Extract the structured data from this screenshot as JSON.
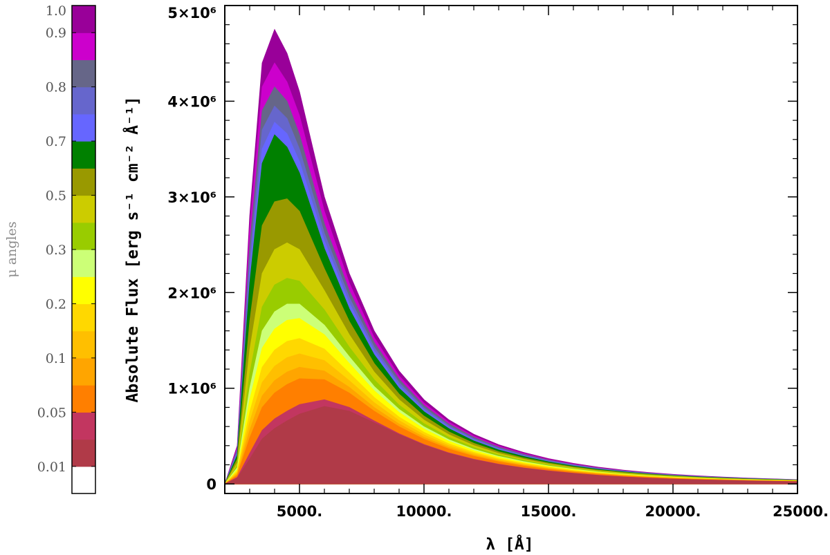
{
  "chart_data": {
    "type": "area",
    "xlabel": "λ [Å]",
    "ylabel": "Absolute Flux [erg s⁻¹ cm⁻² Å⁻¹]",
    "xlim": [
      2000,
      25000
    ],
    "ylim": [
      -100000,
      5000000
    ],
    "x_ticks": [
      {
        "value": 5000,
        "label": "5000."
      },
      {
        "value": 10000,
        "label": "10000."
      },
      {
        "value": 15000,
        "label": "15000."
      },
      {
        "value": 20000,
        "label": "20000."
      },
      {
        "value": 25000,
        "label": "25000."
      }
    ],
    "y_ticks": [
      {
        "value": 0,
        "label": "0"
      },
      {
        "value": 1000000,
        "label": "1×10⁶"
      },
      {
        "value": 2000000,
        "label": "2×10⁶"
      },
      {
        "value": 3000000,
        "label": "3×10⁶"
      },
      {
        "value": 4000000,
        "label": "4×10⁶"
      },
      {
        "value": 5000000,
        "label": "5×10⁶"
      }
    ],
    "x": [
      2000,
      2500,
      3000,
      3500,
      4000,
      4500,
      5000,
      6000,
      7000,
      8000,
      9000,
      10000,
      11000,
      12000,
      13000,
      14000,
      15000,
      16000,
      17000,
      18000,
      19000,
      20000,
      21000,
      22000,
      23000,
      24000,
      25000
    ],
    "colorbar": {
      "title": "μ angles",
      "tick_labels": [
        {
          "value": 0.01,
          "label": "0.01"
        },
        {
          "value": 0.05,
          "label": "0.05"
        },
        {
          "value": 0.1,
          "label": "0.1"
        },
        {
          "value": 0.2,
          "label": "0.2"
        },
        {
          "value": 0.3,
          "label": "0.3"
        },
        {
          "value": 0.5,
          "label": "0.5"
        },
        {
          "value": 0.7,
          "label": "0.7"
        },
        {
          "value": 0.8,
          "label": "0.8"
        },
        {
          "value": 0.9,
          "label": "0.9"
        },
        {
          "value": 1.0,
          "label": "1.0"
        }
      ],
      "colors": [
        "#ffffff",
        "#b03a48",
        "#c23660",
        "#ff7f00",
        "#ffa500",
        "#ffbf00",
        "#ffd800",
        "#ffff00",
        "#ccff77",
        "#99cc00",
        "#cccc00",
        "#999900",
        "#008000",
        "#6666ff",
        "#6666cc",
        "#666688",
        "#cc00cc",
        "#990099"
      ]
    },
    "series": [
      {
        "color": "#990099",
        "values": [
          0,
          400000,
          2800000,
          4400000,
          4750000,
          4500000,
          4100000,
          3000000,
          2200000,
          1600000,
          1180000,
          880000,
          670000,
          520000,
          410000,
          330000,
          265000,
          215000,
          175000,
          145000,
          120000,
          100000,
          85000,
          72000,
          62000,
          53000,
          45000
        ]
      },
      {
        "color": "#cc00cc",
        "values": [
          0,
          380000,
          2650000,
          4150000,
          4400000,
          4200000,
          3850000,
          2850000,
          2100000,
          1530000,
          1130000,
          845000,
          645000,
          500000,
          395000,
          318000,
          255000,
          208000,
          169000,
          140000,
          116000,
          97000,
          82000,
          70000,
          60000,
          51000,
          44000
        ]
      },
      {
        "color": "#666688",
        "values": [
          0,
          360000,
          2500000,
          3900000,
          4150000,
          4000000,
          3650000,
          2720000,
          2020000,
          1480000,
          1095000,
          820000,
          627000,
          487000,
          385000,
          310000,
          249000,
          203000,
          165000,
          137000,
          114000,
          95000,
          80000,
          68000,
          58000,
          50000,
          43000
        ]
      },
      {
        "color": "#6666cc",
        "values": [
          0,
          340000,
          2350000,
          3700000,
          3950000,
          3820000,
          3500000,
          2620000,
          1950000,
          1430000,
          1060000,
          795000,
          608000,
          473000,
          374000,
          302000,
          243000,
          198000,
          161000,
          133000,
          111000,
          93000,
          78000,
          66000,
          57000,
          49000,
          42000
        ]
      },
      {
        "color": "#6666ff",
        "values": [
          0,
          320000,
          2200000,
          3500000,
          3780000,
          3660000,
          3370000,
          2540000,
          1890000,
          1390000,
          1030000,
          775000,
          593000,
          462000,
          365000,
          295000,
          237000,
          193000,
          157000,
          130000,
          108000,
          91000,
          76000,
          65000,
          56000,
          48000,
          41000
        ]
      },
      {
        "color": "#008000",
        "values": [
          0,
          300000,
          2100000,
          3350000,
          3650000,
          3520000,
          3250000,
          2460000,
          1830000,
          1350000,
          1000000,
          755000,
          578000,
          450000,
          356000,
          288000,
          231000,
          188000,
          153000,
          127000,
          105000,
          88000,
          74000,
          63000,
          54000,
          47000,
          40000
        ]
      },
      {
        "color": "#999900",
        "values": [
          0,
          260000,
          1700000,
          2700000,
          2950000,
          2980000,
          2850000,
          2250000,
          1700000,
          1260000,
          940000,
          710000,
          545000,
          425000,
          337000,
          272000,
          219000,
          178000,
          145000,
          120000,
          100000,
          84000,
          70000,
          60000,
          51000,
          44000,
          38000
        ]
      },
      {
        "color": "#cccc00",
        "values": [
          0,
          220000,
          1400000,
          2200000,
          2450000,
          2520000,
          2450000,
          2020000,
          1560000,
          1170000,
          880000,
          668000,
          515000,
          402000,
          319000,
          258000,
          208000,
          169000,
          138000,
          114000,
          95000,
          80000,
          67000,
          57000,
          49000,
          42000,
          36000
        ]
      },
      {
        "color": "#99cc00",
        "values": [
          0,
          190000,
          1150000,
          1850000,
          2080000,
          2150000,
          2120000,
          1820000,
          1430000,
          1090000,
          825000,
          630000,
          487000,
          381000,
          303000,
          245000,
          198000,
          161000,
          131000,
          108000,
          90000,
          76000,
          64000,
          54000,
          47000,
          40000,
          34000
        ]
      },
      {
        "color": "#ccff77",
        "values": [
          0,
          170000,
          1000000,
          1600000,
          1800000,
          1880000,
          1880000,
          1660000,
          1330000,
          1020000,
          780000,
          598000,
          463000,
          363000,
          289000,
          234000,
          189000,
          154000,
          125000,
          103000,
          86000,
          72000,
          61000,
          52000,
          45000,
          38000,
          33000
        ]
      },
      {
        "color": "#ffff00",
        "values": [
          0,
          150000,
          880000,
          1420000,
          1620000,
          1710000,
          1730000,
          1560000,
          1260000,
          975000,
          748000,
          575000,
          446000,
          350000,
          279000,
          226000,
          183000,
          149000,
          121000,
          100000,
          83000,
          70000,
          59000,
          50000,
          43000,
          37000,
          32000
        ]
      },
      {
        "color": "#ffd800",
        "values": [
          0,
          130000,
          750000,
          1220000,
          1400000,
          1490000,
          1520000,
          1410000,
          1160000,
          905000,
          700000,
          540000,
          420000,
          331000,
          264000,
          214000,
          173000,
          141000,
          115000,
          95000,
          79000,
          66000,
          56000,
          48000,
          41000,
          35000,
          30000
        ]
      },
      {
        "color": "#ffbf00",
        "values": [
          0,
          115000,
          650000,
          1060000,
          1230000,
          1320000,
          1360000,
          1290000,
          1080000,
          850000,
          662000,
          513000,
          400000,
          316000,
          252000,
          204000,
          165000,
          135000,
          110000,
          91000,
          75000,
          63000,
          53000,
          46000,
          39000,
          34000,
          29000
        ]
      },
      {
        "color": "#ffa500",
        "values": [
          0,
          100000,
          560000,
          920000,
          1080000,
          1170000,
          1220000,
          1180000,
          1010000,
          800000,
          627000,
          488000,
          381000,
          301000,
          241000,
          195000,
          158000,
          129000,
          105000,
          87000,
          72000,
          60000,
          51000,
          44000,
          37000,
          32000,
          28000
        ]
      },
      {
        "color": "#ff7f00",
        "values": [
          0,
          90000,
          480000,
          800000,
          950000,
          1040000,
          1100000,
          1090000,
          950000,
          760000,
          598000,
          467000,
          365000,
          289000,
          231000,
          187000,
          152000,
          124000,
          101000,
          83000,
          69000,
          58000,
          49000,
          42000,
          36000,
          31000,
          27000
        ]
      },
      {
        "color": "#c23660",
        "values": [
          0,
          70000,
          320000,
          560000,
          680000,
          760000,
          830000,
          880000,
          800000,
          660000,
          525000,
          413000,
          325000,
          258000,
          207000,
          168000,
          137000,
          112000,
          91000,
          75000,
          62000,
          52000,
          44000,
          38000,
          32000,
          28000,
          24000
        ]
      },
      {
        "color": "#b03a48",
        "values": [
          0,
          60000,
          260000,
          470000,
          580000,
          660000,
          730000,
          810000,
          760000,
          640000,
          515000,
          405000,
          318000,
          253000,
          203000,
          165000,
          134000,
          110000,
          89000,
          73000,
          61000,
          51000,
          43000,
          37000,
          31000,
          27000,
          23000
        ]
      }
    ]
  }
}
